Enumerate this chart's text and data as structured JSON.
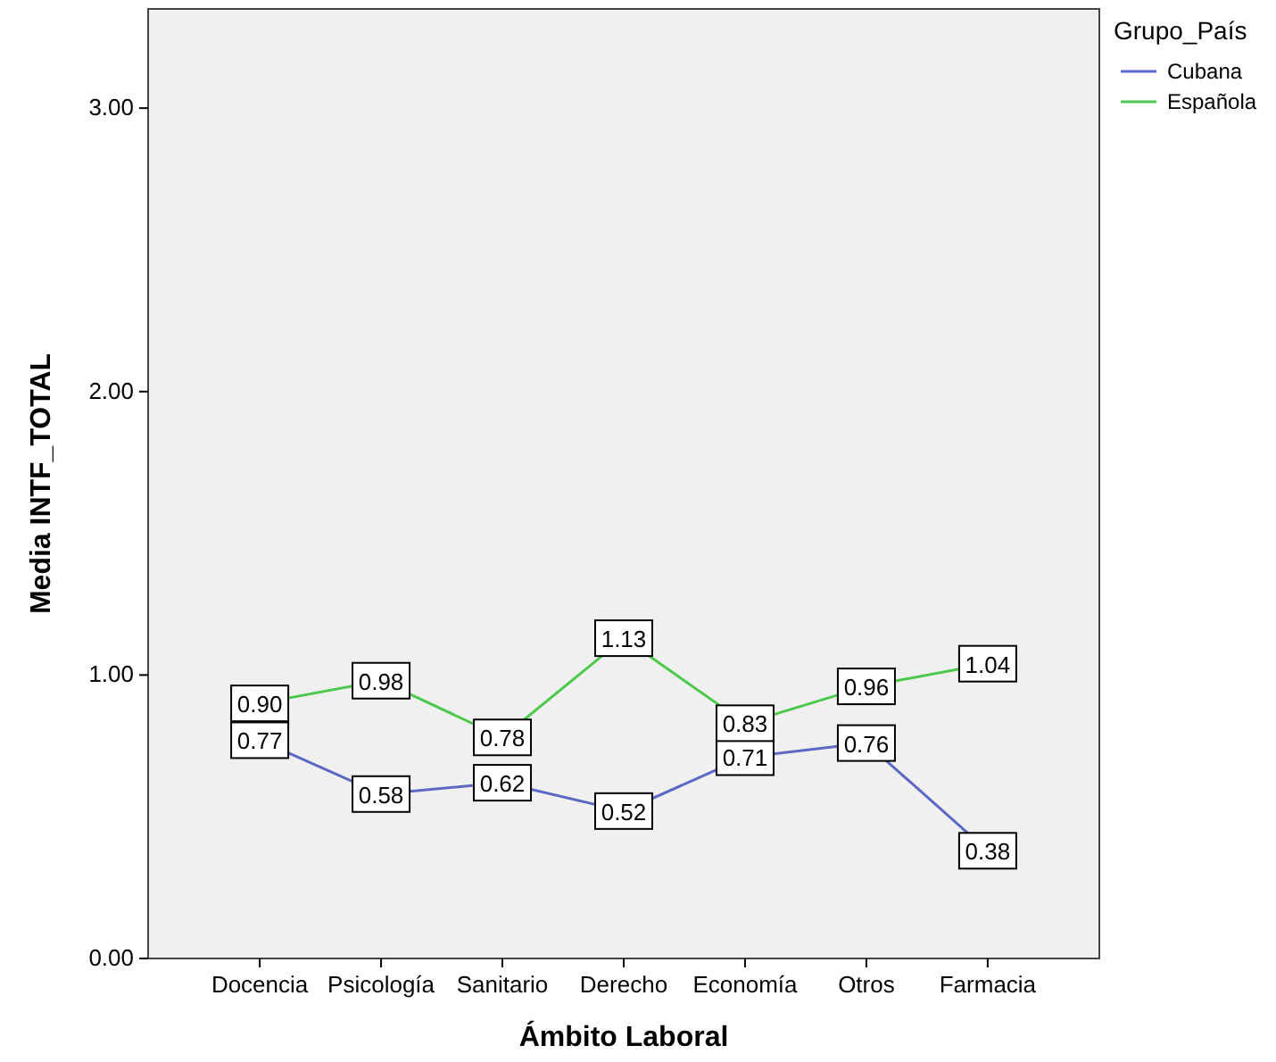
{
  "chart_data": {
    "type": "line",
    "xlabel": "Ámbito Laboral",
    "ylabel": "Media INTF_TOTAL",
    "legend_title": "Grupo_País",
    "legend": "top right",
    "marker": "square",
    "categories": [
      "Docencia",
      "Psicología",
      "Sanitario",
      "Derecho",
      "Economía",
      "Otros",
      "Farmacia"
    ],
    "series": [
      {
        "name": "Cubana",
        "color": "#5d68c4",
        "values": [
          0.77,
          0.58,
          0.62,
          0.52,
          0.71,
          0.76,
          0.38
        ],
        "value_labels": [
          "0.77",
          "0.58",
          "0.62",
          "0.52",
          "0.71",
          "0.76",
          "0.38"
        ]
      },
      {
        "name": "Española",
        "color": "#4cc94c",
        "values": [
          0.9,
          0.98,
          0.78,
          1.13,
          0.83,
          0.96,
          1.04
        ],
        "value_labels": [
          "0.90",
          "0.98",
          "0.78",
          "1.13",
          "0.83",
          "0.96",
          "1.04"
        ]
      }
    ],
    "ylim": [
      0,
      3.35
    ],
    "yticks": [
      {
        "value": 0,
        "label": "0.00"
      },
      {
        "value": 1,
        "label": "1.00"
      },
      {
        "value": 2,
        "label": "2.00"
      },
      {
        "value": 3,
        "label": "3.00"
      }
    ]
  }
}
